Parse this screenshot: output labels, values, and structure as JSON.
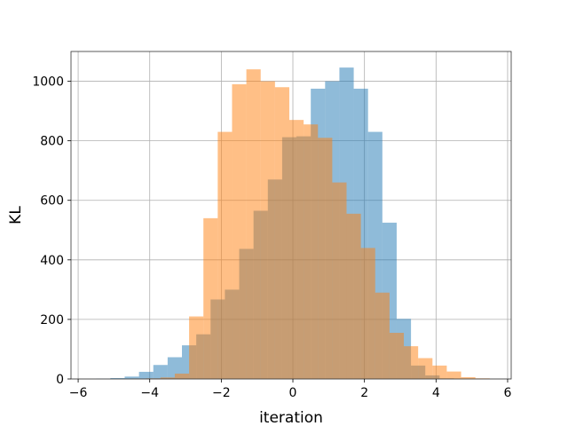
{
  "chart_data": {
    "type": "histogram",
    "title": "",
    "xlabel": "iteration",
    "ylabel": "KL",
    "xlim": [
      -6.2,
      6.1
    ],
    "ylim": [
      0,
      1100
    ],
    "xticks": [
      -6,
      -4,
      -2,
      0,
      2,
      4,
      6
    ],
    "xtick_labels": [
      "−6",
      "−4",
      "−2",
      "0",
      "2",
      "4",
      "6"
    ],
    "yticks": [
      0,
      200,
      400,
      600,
      800,
      1000
    ],
    "ytick_labels": [
      "0",
      "200",
      "400",
      "600",
      "800",
      "1000"
    ],
    "grid": true,
    "series": [
      {
        "color": "#1f77b4",
        "alpha": 0.5,
        "bin_edges": [
          -5.5,
          -5.1,
          -4.7,
          -4.3,
          -3.9,
          -3.5,
          -3.1,
          -2.7,
          -2.3,
          -1.9,
          -1.5,
          -1.1,
          -0.7,
          -0.3,
          0.1,
          0.5,
          0.9,
          1.3,
          1.7,
          2.1,
          2.5,
          2.9,
          3.3,
          3.7,
          4.1,
          4.5
        ],
        "counts": [
          1,
          3,
          8,
          24,
          47,
          73,
          113,
          150,
          267,
          300,
          437,
          565,
          670,
          812,
          815,
          975,
          1000,
          1046,
          975,
          830,
          525,
          202,
          45,
          12,
          2
        ]
      },
      {
        "color": "#ff7f0e",
        "alpha": 0.5,
        "bin_edges": [
          -4.5,
          -4.1,
          -3.7,
          -3.3,
          -2.9,
          -2.5,
          -2.1,
          -1.7,
          -1.3,
          -0.9,
          -0.5,
          -0.1,
          0.3,
          0.7,
          1.1,
          1.5,
          1.9,
          2.3,
          2.7,
          3.1,
          3.5,
          3.9,
          4.3,
          4.7,
          5.1,
          5.5
        ],
        "counts": [
          1,
          2,
          5,
          18,
          210,
          540,
          830,
          990,
          1040,
          1000,
          980,
          870,
          855,
          810,
          660,
          555,
          440,
          290,
          155,
          110,
          70,
          45,
          25,
          6,
          2
        ]
      }
    ]
  }
}
